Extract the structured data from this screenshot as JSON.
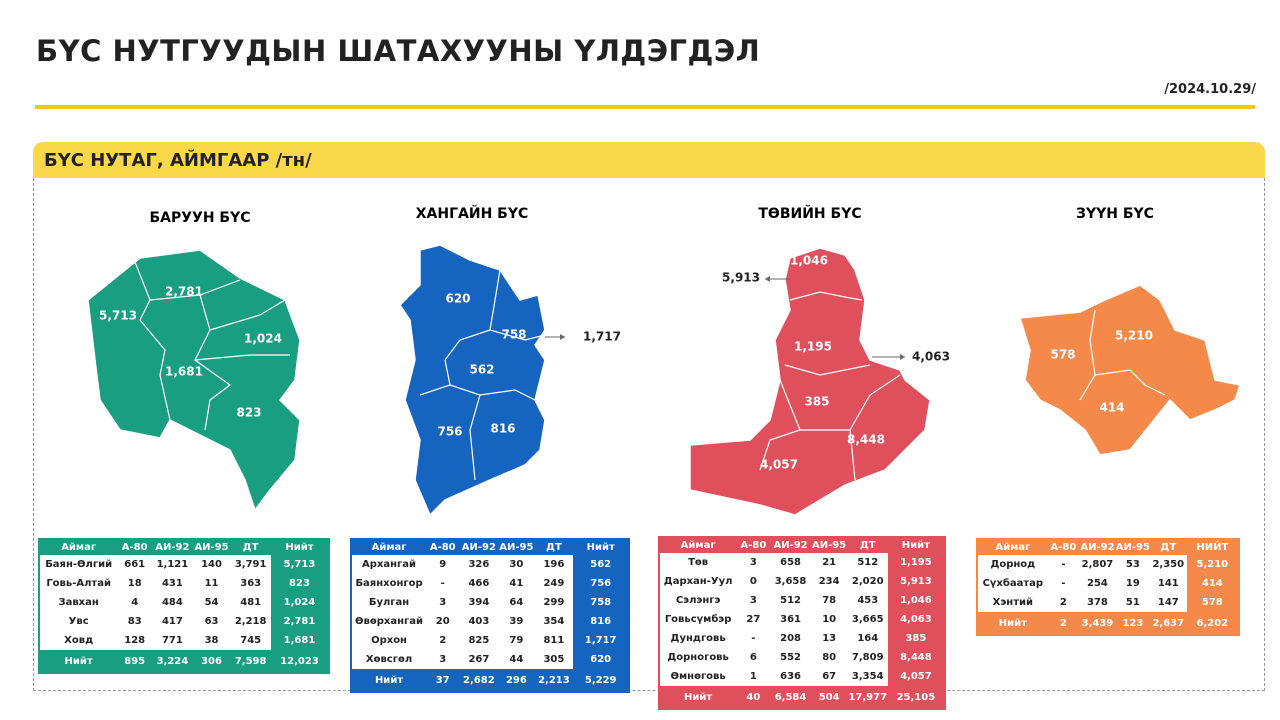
{
  "header": {
    "title": "БҮС НУТГУУДЫН ШАТАХУУНЫ ҮЛДЭГДЭЛ",
    "date": "/2024.10.29/"
  },
  "section": {
    "title": "БҮС НУТАГ, АЙМГААР /тн/"
  },
  "regions": [
    {
      "name": "БАРУУН БҮС",
      "color": "#1a9e82",
      "map_labels": [
        "2,781",
        "5,713",
        "1,024",
        "1,681",
        "823"
      ],
      "callouts": [],
      "table": {
        "columns": [
          "Аймаг",
          "А-80",
          "АИ-92",
          "АИ-95",
          "ДТ",
          "Нийт"
        ],
        "rows": [
          [
            "Баян-Өлгий",
            "661",
            "1,121",
            "140",
            "3,791",
            "5,713"
          ],
          [
            "Говь-Алтай",
            "18",
            "431",
            "11",
            "363",
            "823"
          ],
          [
            "Завхан",
            "4",
            "484",
            "54",
            "481",
            "1,024"
          ],
          [
            "Увс",
            "83",
            "417",
            "63",
            "2,218",
            "2,781"
          ],
          [
            "Ховд",
            "128",
            "771",
            "38",
            "745",
            "1,681"
          ]
        ],
        "total": [
          "Нийт",
          "895",
          "3,224",
          "306",
          "7,598",
          "12,023"
        ]
      }
    },
    {
      "name": "ХАНГАЙН БҮС",
      "color": "#1565c0",
      "map_labels": [
        "620",
        "758",
        "562",
        "756",
        "816"
      ],
      "callouts": [
        "1,717"
      ],
      "table": {
        "columns": [
          "Аймаг",
          "А-80",
          "АИ-92",
          "АИ-95",
          "ДТ",
          "Нийт"
        ],
        "rows": [
          [
            "Архангай",
            "9",
            "326",
            "30",
            "196",
            "562"
          ],
          [
            "Баянхонгор",
            "-",
            "466",
            "41",
            "249",
            "756"
          ],
          [
            "Булган",
            "3",
            "394",
            "64",
            "299",
            "758"
          ],
          [
            "Өвөрхангай",
            "20",
            "403",
            "39",
            "354",
            "816"
          ],
          [
            "Орхон",
            "2",
            "825",
            "79",
            "811",
            "1,717"
          ],
          [
            "Хөвсгөл",
            "3",
            "267",
            "44",
            "305",
            "620"
          ]
        ],
        "total": [
          "Нийт",
          "37",
          "2,682",
          "296",
          "2,213",
          "5,229"
        ]
      }
    },
    {
      "name": "ТӨВИЙН БҮС",
      "color": "#e0505c",
      "map_labels": [
        "1,046",
        "1,195",
        "385",
        "4,057",
        "8,448"
      ],
      "callouts": [
        "5,913",
        "4,063"
      ],
      "table": {
        "columns": [
          "Аймаг",
          "А-80",
          "АИ-92",
          "АИ-95",
          "ДТ",
          "Нийт"
        ],
        "rows": [
          [
            "Төв",
            "3",
            "658",
            "21",
            "512",
            "1,195"
          ],
          [
            "Дархан-Уул",
            "0",
            "3,658",
            "234",
            "2,020",
            "5,913"
          ],
          [
            "Сэлэнгэ",
            "3",
            "512",
            "78",
            "453",
            "1,046"
          ],
          [
            "Говьсүмбэр",
            "27",
            "361",
            "10",
            "3,665",
            "4,063"
          ],
          [
            "Дундговь",
            "-",
            "208",
            "13",
            "164",
            "385"
          ],
          [
            "Дорноговь",
            "6",
            "552",
            "80",
            "7,809",
            "8,448"
          ],
          [
            "Өмнөговь",
            "1",
            "636",
            "67",
            "3,354",
            "4,057"
          ]
        ],
        "total": [
          "Нийт",
          "40",
          "6,584",
          "504",
          "17,977",
          "25,105"
        ]
      }
    },
    {
      "name": "ЗҮҮН БҮС",
      "color": "#f5894a",
      "map_labels": [
        "578",
        "5,210",
        "414"
      ],
      "callouts": [],
      "table": {
        "columns": [
          "Аймаг",
          "А-80",
          "АИ-92",
          "АИ-95",
          "ДТ",
          "НИЙТ"
        ],
        "rows": [
          [
            "Дорнод",
            "-",
            "2,807",
            "53",
            "2,350",
            "5,210"
          ],
          [
            "Сүхбаатар",
            "-",
            "254",
            "19",
            "141",
            "414"
          ],
          [
            "Хэнтий",
            "2",
            "378",
            "51",
            "147",
            "578"
          ]
        ],
        "total": [
          "Нийт",
          "2",
          "3,439",
          "123",
          "2,637",
          "6,202"
        ]
      }
    }
  ]
}
